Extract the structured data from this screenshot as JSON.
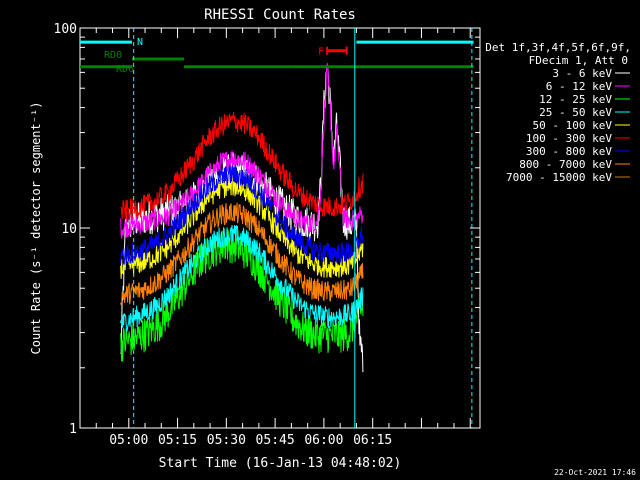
{
  "chart_data": {
    "type": "line",
    "title": "RHESSI Count Rates",
    "xlabel": "Start Time (16-Jan-13 04:48:02)",
    "ylabel": "Count Rate (s⁻¹ detector segment⁻¹)",
    "yscale": "log",
    "ylim": [
      1,
      100
    ],
    "xlim_minutes": [
      45,
      168
    ],
    "y_tick_labels": [
      "1",
      "10",
      "100"
    ],
    "x_tick_labels": [
      {
        "label": "05:00",
        "minute": 60
      },
      {
        "label": "05:15",
        "minute": 75
      },
      {
        "label": "05:30",
        "minute": 90
      },
      {
        "label": "05:45",
        "minute": 105
      },
      {
        "label": "06:00",
        "minute": 120
      },
      {
        "label": "06:15",
        "minute": 135
      }
    ],
    "legend_header": [
      "Det 1f,3f,4f,5f,6f,9f,",
      "FDecim 1, Att 0"
    ],
    "legend_position": "right",
    "timestamp": "22-Oct-2021 17:46",
    "series": [
      {
        "name": "3 - 6 keV",
        "color": "#ffffff",
        "x": [
          57.5,
          59,
          60,
          63,
          68,
          72,
          76,
          80,
          84,
          88,
          92,
          96,
          100,
          104,
          108,
          112,
          116,
          118,
          119,
          120,
          121,
          122,
          123,
          124,
          126,
          128,
          130,
          131,
          132
        ],
        "y": [
          2.2,
          10,
          10.5,
          11,
          11.5,
          12,
          12.5,
          14,
          16.5,
          18.5,
          19.5,
          19,
          17,
          14.5,
          12.5,
          11,
          10.5,
          10.5,
          16,
          40,
          68,
          40,
          22,
          33,
          11,
          10.5,
          10.5,
          2.6,
          2.3
        ]
      },
      {
        "name": "6 - 12 keV",
        "color": "#ff00ff",
        "x": [
          57.5,
          60,
          64,
          68,
          72,
          76,
          80,
          84,
          88,
          92,
          96,
          100,
          104,
          108,
          112,
          116,
          118,
          119,
          120,
          121,
          122,
          123,
          124,
          126,
          128,
          130,
          132
        ],
        "y": [
          10,
          10.2,
          10.5,
          11,
          11.5,
          13,
          15,
          18,
          21,
          22.5,
          21.5,
          18.5,
          15,
          12.5,
          11,
          10.5,
          10.8,
          15,
          35,
          62,
          38,
          20,
          30,
          11.5,
          10.8,
          11,
          12
        ]
      },
      {
        "name": "12 - 25 keV",
        "color": "#00ff00",
        "x": [
          57.5,
          59,
          62,
          66,
          70,
          74,
          78,
          82,
          86,
          90,
          94,
          98,
          102,
          106,
          110,
          114,
          118,
          122,
          126,
          128,
          130,
          132
        ],
        "y": [
          2.6,
          2.7,
          2.8,
          3,
          3.4,
          4.2,
          5.4,
          6.8,
          7.8,
          8.3,
          8,
          7,
          5.7,
          4.5,
          3.6,
          3.1,
          2.9,
          2.9,
          2.9,
          3,
          3.5,
          4
        ]
      },
      {
        "name": "25 - 50 keV",
        "color": "#00ffff",
        "x": [
          57.5,
          60,
          64,
          68,
          72,
          76,
          80,
          84,
          88,
          92,
          96,
          100,
          104,
          108,
          112,
          116,
          120,
          124,
          128,
          130,
          132
        ],
        "y": [
          3.3,
          3.5,
          3.7,
          4,
          4.6,
          5.6,
          6.8,
          8.1,
          9,
          9.3,
          8.8,
          7.6,
          6.1,
          5,
          4.2,
          3.8,
          3.6,
          3.6,
          3.7,
          4,
          4.6
        ]
      },
      {
        "name": "50 - 100 keV",
        "color": "#ffff00",
        "x": [
          57.5,
          60,
          64,
          68,
          72,
          76,
          80,
          84,
          88,
          92,
          96,
          100,
          104,
          108,
          112,
          116,
          120,
          124,
          128,
          130,
          132
        ],
        "y": [
          6.3,
          6.5,
          6.7,
          7.2,
          8,
          9.5,
          11.5,
          14,
          15.8,
          16.3,
          15.4,
          13.2,
          10.7,
          8.7,
          7.4,
          6.7,
          6.4,
          6.4,
          6.5,
          7,
          8
        ]
      },
      {
        "name": "100 - 300 keV",
        "color": "#ff0000",
        "x": [
          57.5,
          60,
          64,
          68,
          72,
          76,
          80,
          84,
          88,
          92,
          96,
          100,
          104,
          108,
          112,
          116,
          120,
          124,
          128,
          130,
          132
        ],
        "y": [
          12,
          12.3,
          12.8,
          13.6,
          15,
          18,
          22,
          27.5,
          32,
          34.5,
          33,
          28.5,
          22.5,
          18,
          15,
          13.6,
          12.8,
          12.8,
          13.5,
          15,
          17
        ]
      },
      {
        "name": "300 - 800 keV",
        "color": "#0000ff",
        "x": [
          57.5,
          60,
          64,
          68,
          72,
          76,
          80,
          84,
          88,
          92,
          96,
          100,
          104,
          108,
          112,
          116,
          120,
          124,
          128,
          130,
          132
        ],
        "y": [
          7.2,
          7.4,
          7.7,
          8.3,
          9.3,
          11,
          13.3,
          15.8,
          17.8,
          18.6,
          17.6,
          15.2,
          12.4,
          10.2,
          8.7,
          7.9,
          7.5,
          7.5,
          7.6,
          8.2,
          9.4
        ]
      },
      {
        "name": "800 - 7000 keV",
        "color": "#ff8000",
        "x": [
          57.5,
          60,
          64,
          68,
          72,
          76,
          80,
          84,
          88,
          92,
          96,
          100,
          104,
          108,
          112,
          116,
          120,
          124,
          128,
          130,
          132
        ],
        "y": [
          4.5,
          4.7,
          4.9,
          5.3,
          6,
          7.1,
          8.6,
          10.3,
          11.6,
          12,
          11.4,
          9.8,
          8,
          6.5,
          5.5,
          5,
          4.8,
          4.8,
          4.9,
          5.3,
          6
        ]
      },
      {
        "name": "7000 - 15000 keV",
        "color": "#c08000",
        "x": [],
        "y": []
      }
    ],
    "attenuator_bars": [
      {
        "label": "N",
        "color": "#00ffff",
        "segments": [
          [
            45,
            61
          ],
          [
            130,
            166
          ]
        ],
        "level": 85
      },
      {
        "label": "F",
        "color": "#ff0000",
        "segments": [
          [
            121,
            127
          ]
        ],
        "level": 77
      },
      {
        "label": "RD0",
        "color": "#008000",
        "segments": [
          [
            61,
            77
          ]
        ],
        "level": 70
      },
      {
        "label": "RD6",
        "color": "#008000",
        "segments": [
          [
            45,
            61
          ],
          [
            77,
            110
          ],
          [
            110,
            129
          ],
          [
            129,
            166
          ]
        ],
        "level": 64
      }
    ],
    "vertical_lines": [
      {
        "minute": 61.5,
        "color": "#00ffff",
        "style": "dashed"
      },
      {
        "minute": 129.5,
        "color": "#00ffff",
        "style": "solid"
      },
      {
        "minute": 165.5,
        "color": "#00ffff",
        "style": "dashed"
      }
    ]
  }
}
